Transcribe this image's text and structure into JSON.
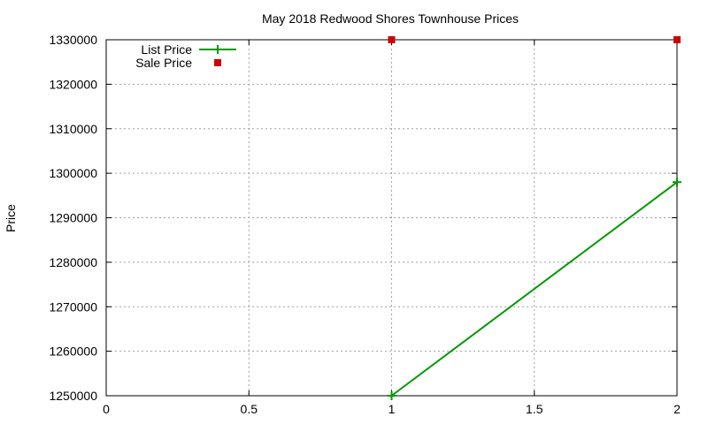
{
  "chart_data": {
    "type": "line",
    "title": "May 2018 Redwood Shores Townhouse Prices",
    "xlabel": "",
    "ylabel": "Price",
    "xlim": [
      0,
      2
    ],
    "ylim": [
      1250000,
      1330000
    ],
    "xticks": [
      0,
      0.5,
      1,
      1.5,
      2
    ],
    "xtick_labels": [
      "0",
      "0.5",
      "1",
      "1.5",
      "2"
    ],
    "yticks": [
      1250000,
      1260000,
      1270000,
      1280000,
      1290000,
      1300000,
      1310000,
      1320000,
      1330000
    ],
    "ytick_labels": [
      "1250000",
      "1260000",
      "1270000",
      "1280000",
      "1290000",
      "1300000",
      "1310000",
      "1320000",
      "1330000"
    ],
    "grid": true,
    "legend_position": "top-left",
    "series": [
      {
        "name": "List Price",
        "style": "line+cross",
        "color": "#009900",
        "x": [
          1,
          2
        ],
        "values": [
          1250000,
          1298000
        ]
      },
      {
        "name": "Sale Price",
        "style": "square-points",
        "color": "#cc0000",
        "x": [
          1,
          2
        ],
        "values": [
          1330000,
          1330000
        ]
      }
    ]
  }
}
